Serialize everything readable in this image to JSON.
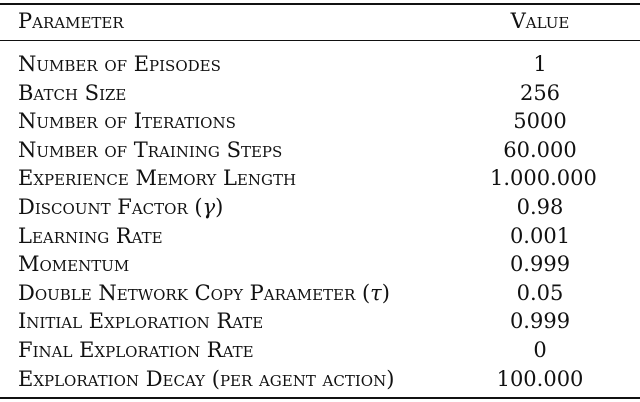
{
  "table": {
    "header": {
      "parameter": "Parameter",
      "value": "Value"
    },
    "rows": [
      {
        "parameter": "Number of Episodes",
        "symbol": "",
        "value": "1"
      },
      {
        "parameter": "Batch Size",
        "symbol": "",
        "value": "256"
      },
      {
        "parameter": "Number of Iterations",
        "symbol": "",
        "value": "5000"
      },
      {
        "parameter": "Number of Training Steps",
        "symbol": "",
        "value": "60.000"
      },
      {
        "parameter": "Experience Memory Length",
        "symbol": "",
        "value": "1.000.000"
      },
      {
        "parameter": "Discount Factor (",
        "symbol": "γ",
        "suffix": ")",
        "value": "0.98"
      },
      {
        "parameter": "Learning Rate",
        "symbol": "",
        "value": "0.001"
      },
      {
        "parameter": "Momentum",
        "symbol": "",
        "value": "0.999"
      },
      {
        "parameter": "Double Network Copy Parameter (",
        "symbol": "τ",
        "suffix": ")",
        "value": "0.05"
      },
      {
        "parameter": "Initial Exploration Rate",
        "symbol": "",
        "value": "0.999"
      },
      {
        "parameter": "Final Exploration Rate",
        "symbol": "",
        "value": "0"
      },
      {
        "parameter": "Exploration Decay (per agent action)",
        "symbol": "",
        "value": "100.000"
      }
    ]
  }
}
